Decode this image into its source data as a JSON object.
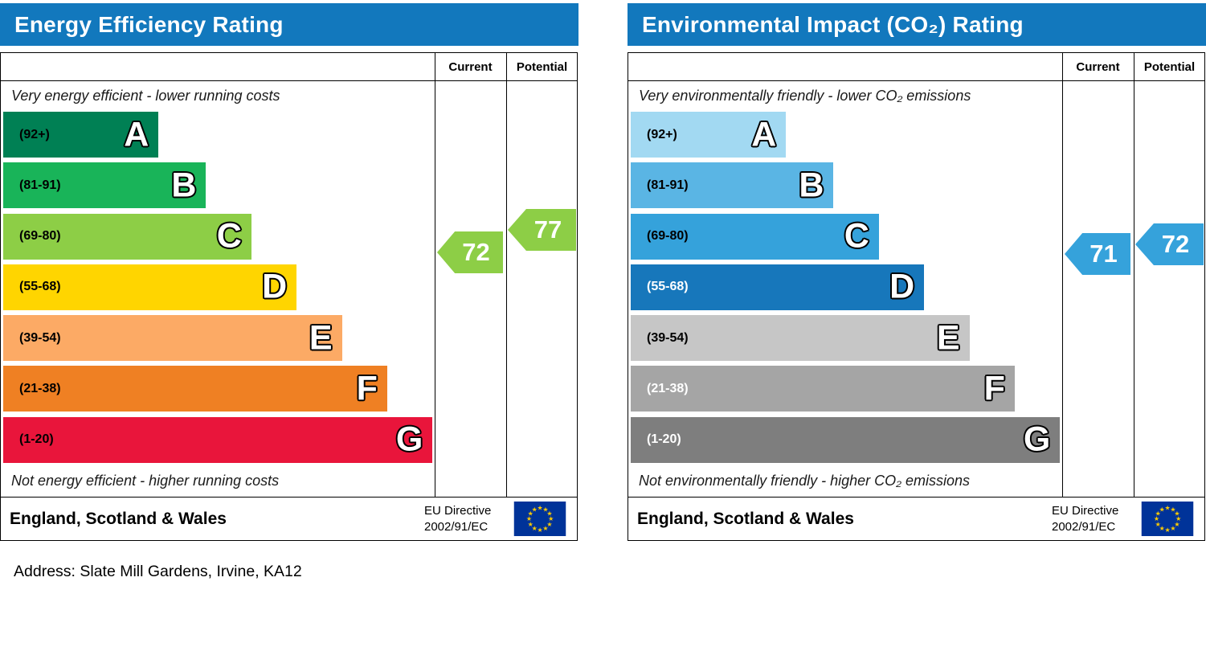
{
  "address_line": "Address: Slate Mill Gardens, Irvine, KA12",
  "panels": [
    {
      "title": "Energy Efficiency Rating",
      "header_color": "#1278bd",
      "col_current": "Current",
      "col_potential": "Potential",
      "top_caption": "Very energy efficient - lower running costs",
      "bottom_caption": "Not energy efficient - higher running costs",
      "region_label": "England, Scotland & Wales",
      "directive_line1": "EU Directive",
      "directive_line2": "2002/91/EC",
      "flag_background": "#003399",
      "flag_star_color": "#ffcc00"
    },
    {
      "title": "Environmental Impact (CO₂) Rating",
      "header_color": "#1278bd",
      "col_current": "Current",
      "col_potential": "Potential",
      "top_caption": "Very environmentally friendly - lower CO₂ emissions",
      "bottom_caption": "Not environmentally friendly - higher CO₂ emissions",
      "region_label": "England, Scotland & Wales",
      "directive_line1": "EU Directive",
      "directive_line2": "2002/91/EC",
      "flag_background": "#003399",
      "flag_star_color": "#ffcc00"
    }
  ],
  "chart_data": [
    {
      "type": "bar",
      "title": "Energy Efficiency Rating",
      "legend": [
        "Current",
        "Potential"
      ],
      "categories": [
        "A (92+)",
        "B (81-91)",
        "C (69-80)",
        "D (55-68)",
        "E (39-54)",
        "F (21-38)",
        "G (1-20)"
      ],
      "bands": [
        {
          "letter": "A",
          "range_label": "(92+)",
          "min": 92,
          "max": 100,
          "color": "#008054",
          "label_color": "#000000",
          "width_pct": 36
        },
        {
          "letter": "B",
          "range_label": "(81-91)",
          "min": 81,
          "max": 91,
          "color": "#19b459",
          "label_color": "#000000",
          "width_pct": 47
        },
        {
          "letter": "C",
          "range_label": "(69-80)",
          "min": 69,
          "max": 80,
          "color": "#8dce46",
          "label_color": "#000000",
          "width_pct": 57.5
        },
        {
          "letter": "D",
          "range_label": "(55-68)",
          "min": 55,
          "max": 68,
          "color": "#ffd500",
          "label_color": "#000000",
          "width_pct": 68
        },
        {
          "letter": "E",
          "range_label": "(39-54)",
          "min": 39,
          "max": 54,
          "color": "#fcaa65",
          "label_color": "#000000",
          "width_pct": 78.5
        },
        {
          "letter": "F",
          "range_label": "(21-38)",
          "min": 21,
          "max": 38,
          "color": "#ef8023",
          "label_color": "#000000",
          "width_pct": 89
        },
        {
          "letter": "G",
          "range_label": "(1-20)",
          "min": 1,
          "max": 20,
          "color": "#e9153b",
          "label_color": "#000000",
          "width_pct": 99.5
        }
      ],
      "current": {
        "value": 72,
        "band": "C",
        "color": "#8dce46"
      },
      "potential": {
        "value": 77,
        "band": "C",
        "color": "#8dce46"
      }
    },
    {
      "type": "bar",
      "title": "Environmental Impact (CO₂) Rating",
      "legend": [
        "Current",
        "Potential"
      ],
      "categories": [
        "A (92+)",
        "B (81-91)",
        "C (69-80)",
        "D (55-68)",
        "E (39-54)",
        "F (21-38)",
        "G (1-20)"
      ],
      "bands": [
        {
          "letter": "A",
          "range_label": "(92+)",
          "min": 92,
          "max": 100,
          "color": "#a2d9f2",
          "label_color": "#000000",
          "width_pct": 36
        },
        {
          "letter": "B",
          "range_label": "(81-91)",
          "min": 81,
          "max": 91,
          "color": "#5ab5e4",
          "label_color": "#000000",
          "width_pct": 47
        },
        {
          "letter": "C",
          "range_label": "(69-80)",
          "min": 69,
          "max": 80,
          "color": "#35a2db",
          "label_color": "#000000",
          "width_pct": 57.5
        },
        {
          "letter": "D",
          "range_label": "(55-68)",
          "min": 55,
          "max": 68,
          "color": "#1777bb",
          "label_color": "#ffffff",
          "width_pct": 68
        },
        {
          "letter": "E",
          "range_label": "(39-54)",
          "min": 39,
          "max": 54,
          "color": "#c6c6c6",
          "label_color": "#000000",
          "width_pct": 78.5
        },
        {
          "letter": "F",
          "range_label": "(21-38)",
          "min": 21,
          "max": 38,
          "color": "#a5a5a5",
          "label_color": "#ffffff",
          "width_pct": 89
        },
        {
          "letter": "G",
          "range_label": "(1-20)",
          "min": 1,
          "max": 20,
          "color": "#7e7e7e",
          "label_color": "#ffffff",
          "width_pct": 99.5
        }
      ],
      "current": {
        "value": 71,
        "band": "C",
        "color": "#35a2db"
      },
      "potential": {
        "value": 72,
        "band": "C",
        "color": "#35a2db"
      }
    }
  ]
}
